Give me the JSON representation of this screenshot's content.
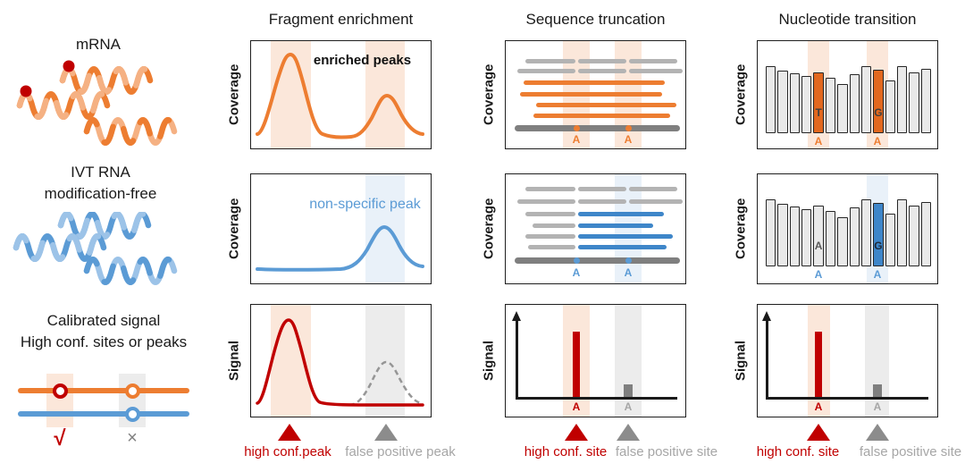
{
  "colors": {
    "orange": "#ED7D31",
    "dark_red": "#C00000",
    "blue": "#5B9BD5",
    "read_blue": "#3E86C9",
    "bar_orange": "#E2681F",
    "light_orange_band": "#FBE7DA",
    "light_blue_band": "#E9F1F9",
    "light_gray_band": "#ECECEC",
    "gray_text": "#A6A6A6",
    "read_gray": "#B3B3B3",
    "ref_gray": "#7F7F7F"
  },
  "left_column": {
    "mrna": {
      "label": "mRNA"
    },
    "ivt": {
      "label_line1": "IVT RNA",
      "label_line2": "modification-free"
    },
    "calibrated": {
      "label_line1": "Calibrated signal",
      "label_line2": "High conf. sites or peaks",
      "check_mark": "√",
      "cross_mark": "×"
    }
  },
  "columns": {
    "fragment": {
      "title": "Fragment enrichment",
      "enriched_label": "enriched peaks",
      "nonspecific_label": "non-specific peak",
      "high_conf_label": "high conf.peak",
      "false_positive_label": "false positive peak"
    },
    "truncation": {
      "title": "Sequence truncation",
      "high_conf_label": "high conf. site",
      "false_positive_label": "false positive site"
    },
    "nucleotide": {
      "title": "Nucleotide transition",
      "high_conf_label": "high conf. site",
      "false_positive_label": "false positive site"
    }
  },
  "axis": {
    "coverage": "Coverage",
    "signal": "Signal"
  },
  "site_label": "A",
  "chart_data": [
    {
      "id": "fragment-mrna-coverage",
      "type": "line",
      "ylabel": "Coverage",
      "annotation": "enriched peaks",
      "peaks": [
        {
          "site": "high conf.peak",
          "rel_pos": 0.22,
          "rel_height": 1.0
        },
        {
          "site": "false positive peak",
          "rel_pos": 0.74,
          "rel_height": 0.52
        }
      ]
    },
    {
      "id": "fragment-ivt-coverage",
      "type": "line",
      "ylabel": "Coverage",
      "annotation": "non-specific peak",
      "peaks": [
        {
          "site": "false positive peak",
          "rel_pos": 0.74,
          "rel_height": 0.5
        }
      ]
    },
    {
      "id": "fragment-calibrated-signal",
      "type": "line",
      "ylabel": "Signal",
      "peaks": [
        {
          "site": "high conf.peak",
          "rel_pos": 0.22,
          "rel_height": 1.0,
          "style": "solid-dark-red"
        },
        {
          "site": "false positive peak",
          "rel_pos": 0.74,
          "rel_height": 0.5,
          "style": "dashed-gray"
        }
      ]
    },
    {
      "id": "truncation-calibrated-signal",
      "type": "bar",
      "ylabel": "Signal",
      "bars": [
        {
          "site": "A",
          "rel_height": 1.0,
          "color": "#C00000"
        },
        {
          "site": "A",
          "rel_height": 0.19,
          "color": "#7F7F7F"
        }
      ]
    },
    {
      "id": "nucleotide-mrna-coverage",
      "type": "bar",
      "ylabel": "Coverage",
      "values": [
        75,
        70,
        67,
        64,
        68,
        62,
        55,
        66,
        75,
        71,
        59,
        75,
        68,
        72
      ],
      "highlights": [
        {
          "index": 4,
          "letter": "T",
          "bar_color": "#E2681F",
          "letter_color": "#3F3F3F",
          "site": "A",
          "site_color": "#ED7D31"
        },
        {
          "index": 9,
          "letter": "G",
          "bar_color": "#E2681F",
          "letter_color": "#3F3F3F",
          "site": "A",
          "site_color": "#ED7D31"
        }
      ]
    },
    {
      "id": "nucleotide-ivt-coverage",
      "type": "bar",
      "ylabel": "Coverage",
      "values": [
        75,
        70,
        67,
        64,
        68,
        62,
        55,
        66,
        75,
        71,
        59,
        75,
        68,
        72
      ],
      "highlights": [
        {
          "index": 4,
          "letter": "A",
          "bar_color": "#E9E9E9",
          "letter_color": "#595959",
          "site": "A",
          "site_color": "#5B9BD5"
        },
        {
          "index": 9,
          "letter": "G",
          "bar_color": "#3E86C9",
          "letter_color": "#1F2937",
          "site": "A",
          "site_color": "#5B9BD5"
        }
      ]
    },
    {
      "id": "nucleotide-calibrated-signal",
      "type": "bar",
      "ylabel": "Signal",
      "bars": [
        {
          "site": "A",
          "rel_height": 1.0,
          "color": "#C00000"
        },
        {
          "site": "A",
          "rel_height": 0.19,
          "color": "#7F7F7F"
        }
      ]
    }
  ]
}
